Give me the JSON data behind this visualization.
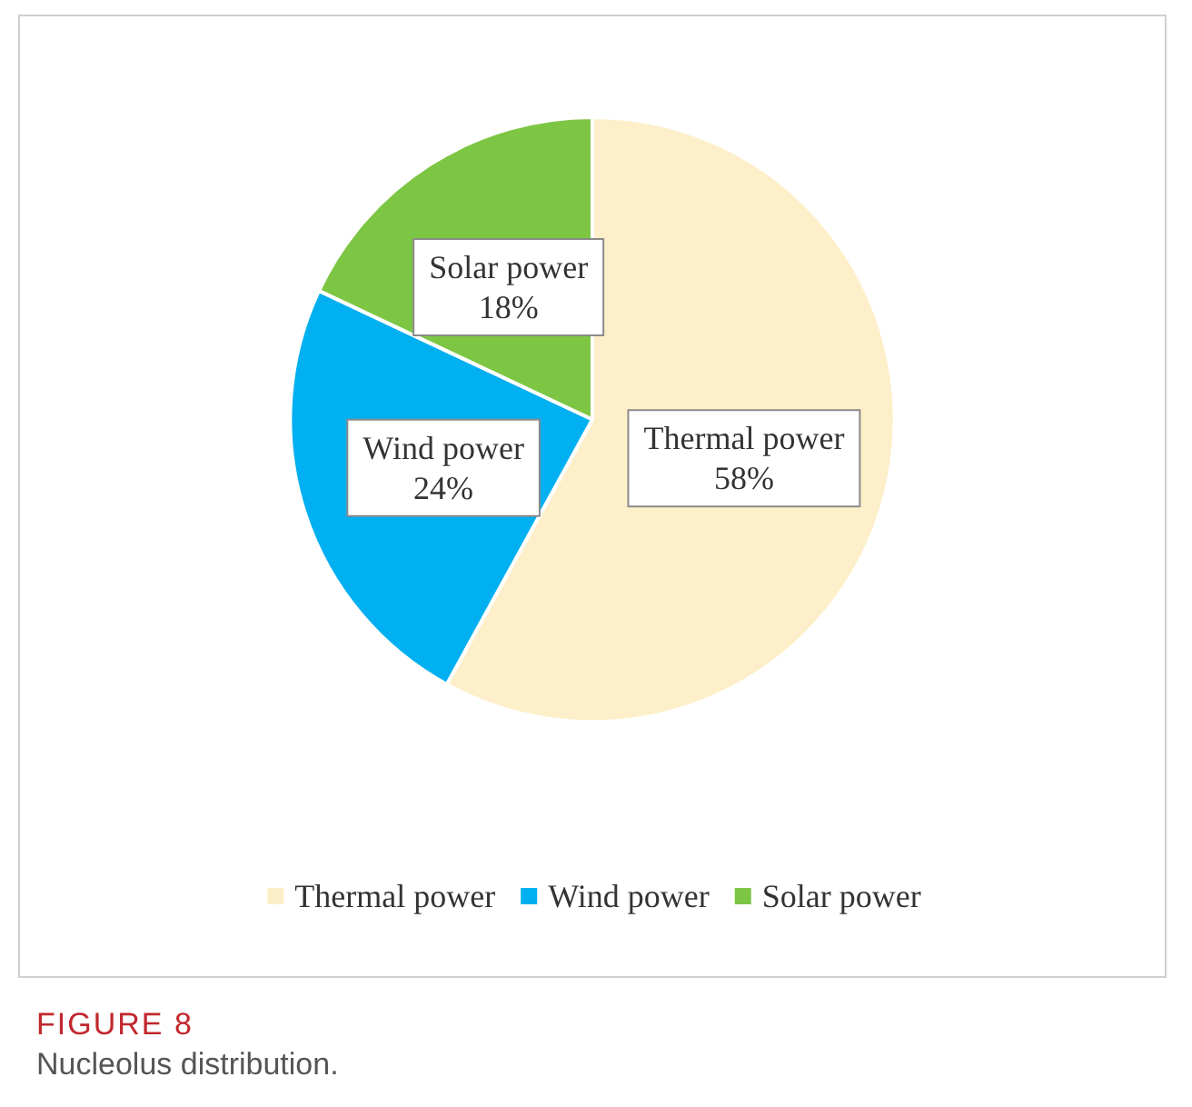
{
  "chart_data": {
    "type": "pie",
    "categories": [
      "Thermal power",
      "Wind power",
      "Solar power"
    ],
    "values": [
      58,
      24,
      18
    ],
    "colors": [
      "#fdefc9",
      "#00b0f0",
      "#7dc644"
    ],
    "value_labels": [
      "58%",
      "24%",
      "18%"
    ],
    "legend": "bottom",
    "annotations": [
      "FIGURE 8",
      "Nucleolus distribution."
    ]
  }
}
